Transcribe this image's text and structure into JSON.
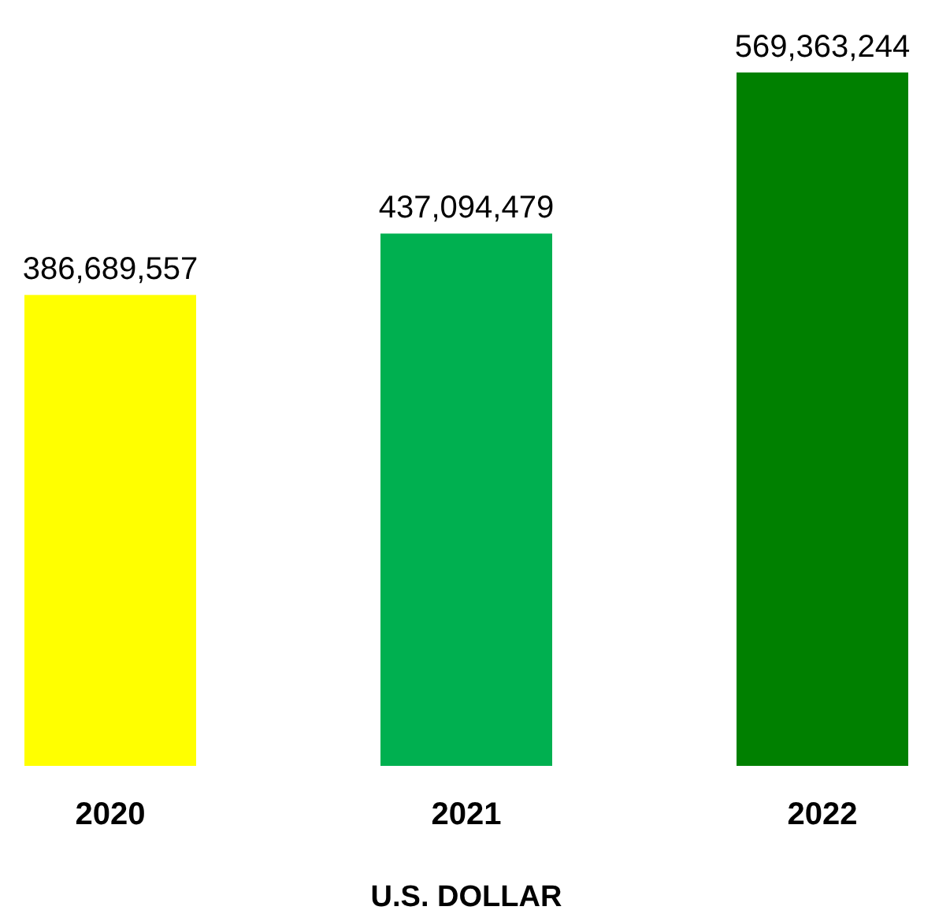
{
  "chart_data": {
    "type": "bar",
    "categories": [
      "2020",
      "2021",
      "2022"
    ],
    "values": [
      386689557,
      437094479,
      569363244
    ],
    "value_labels": [
      "386,689,557",
      "437,094,479",
      "569,363,244"
    ],
    "colors": [
      "#ffff00",
      "#00b050",
      "#008000"
    ],
    "xlabel": "U.S. DOLLAR"
  }
}
